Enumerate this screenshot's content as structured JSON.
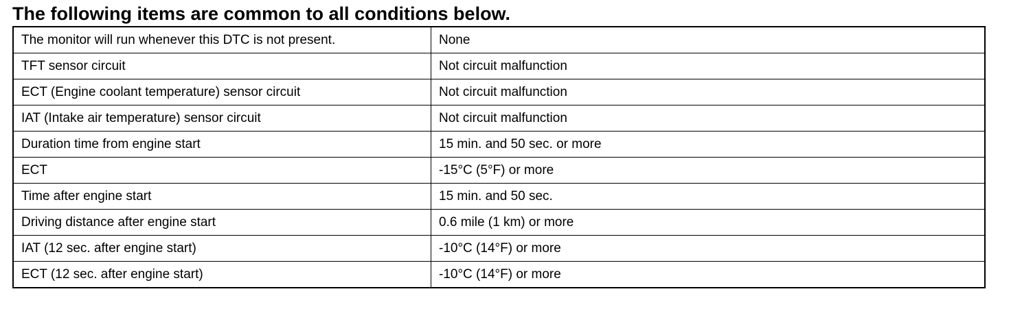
{
  "header": {
    "title": "The following items are common to all conditions below."
  },
  "table": {
    "rows": [
      [
        "The monitor will run whenever this DTC is not present.",
        "None"
      ],
      [
        "TFT sensor circuit",
        "Not circuit malfunction"
      ],
      [
        "ECT (Engine coolant temperature) sensor circuit",
        "Not circuit malfunction"
      ],
      [
        "IAT (Intake air temperature) sensor circuit",
        "Not circuit malfunction"
      ],
      [
        "Duration time from engine start",
        "15 min. and 50 sec. or more"
      ],
      [
        "ECT",
        "-15°C (5°F) or more"
      ],
      [
        "Time after engine start",
        "15 min. and 50 sec."
      ],
      [
        "Driving distance after engine start",
        "0.6 mile (1 km) or more"
      ],
      [
        "IAT (12 sec. after engine start)",
        "-10°C (14°F) or more"
      ],
      [
        "ECT (12 sec. after engine start)",
        "-10°C (14°F) or more"
      ]
    ]
  }
}
